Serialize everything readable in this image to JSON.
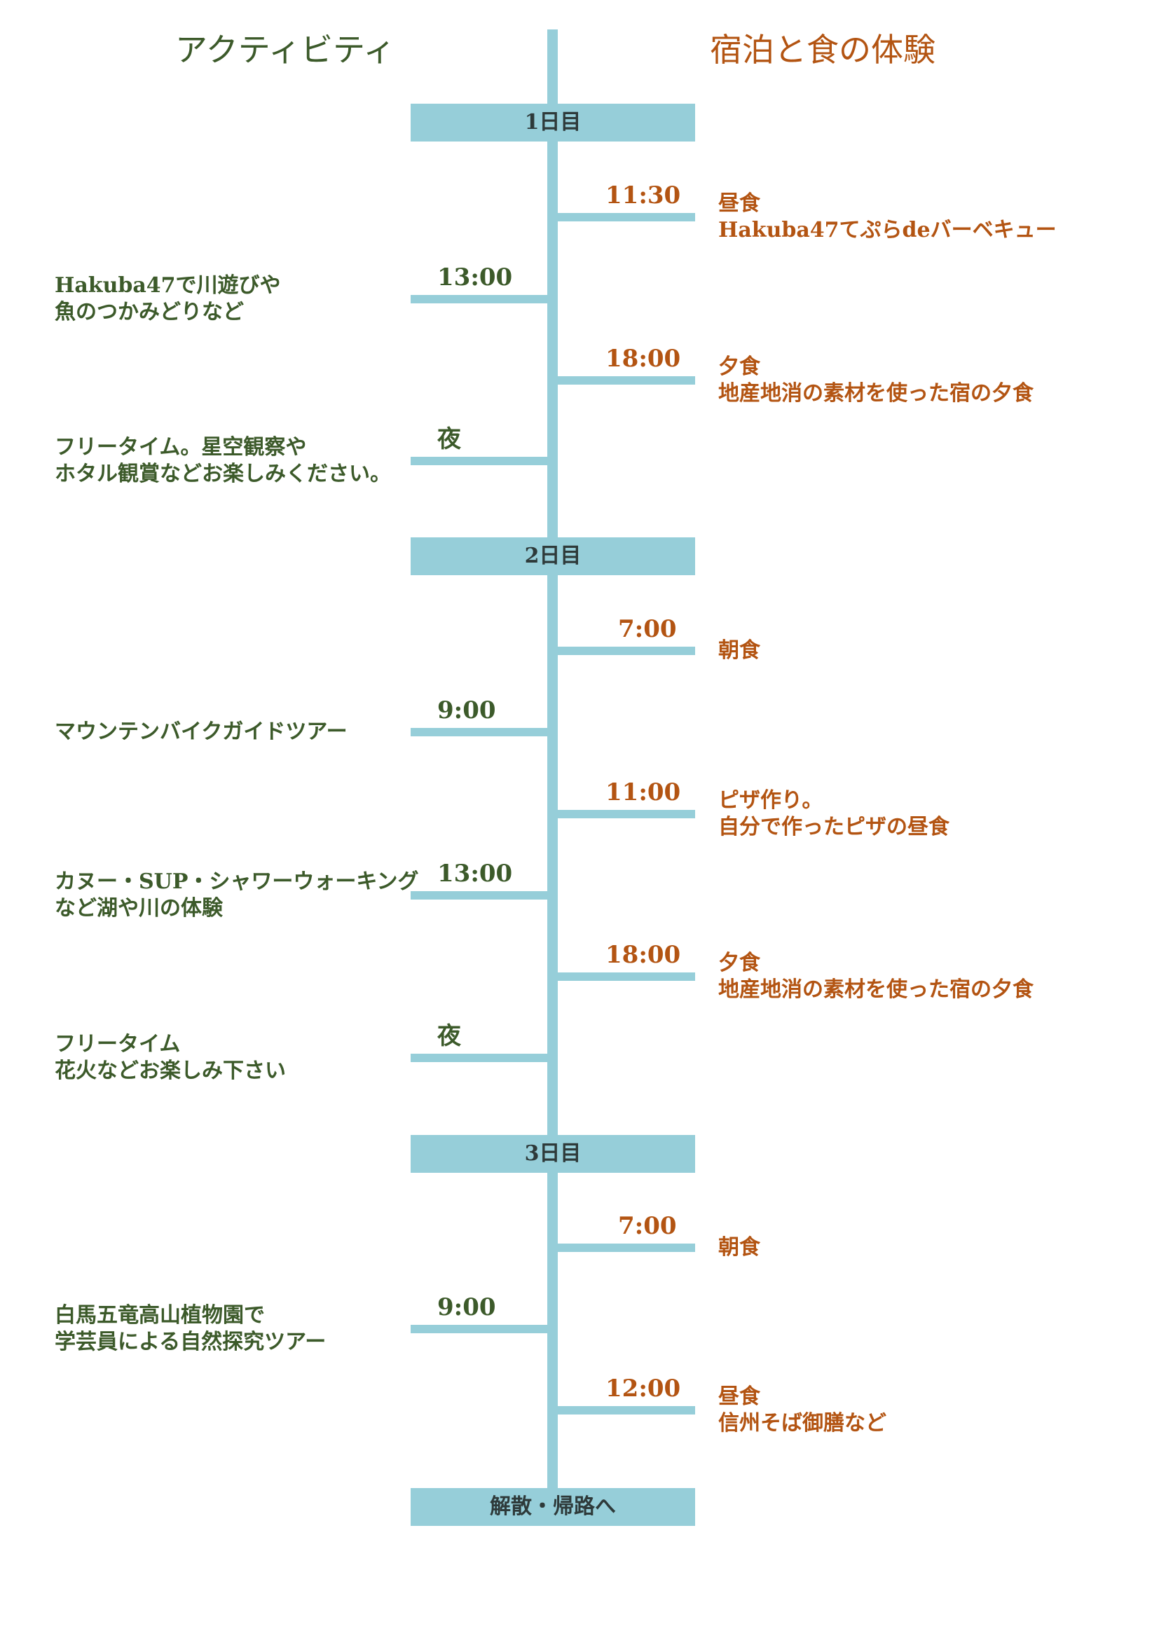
{
  "header": {
    "left_title": "アクティビティ",
    "right_title": "宿泊と食の体験"
  },
  "days": [
    {
      "label": "1日目"
    },
    {
      "label": "2日目"
    },
    {
      "label": "3日目"
    },
    {
      "label": "解散・帰路へ"
    }
  ],
  "events": [
    {
      "time": "11:30",
      "lines": [
        "昼食",
        "Hakuba47てぷらdeバーベキュー"
      ]
    },
    {
      "time": "13:00",
      "lines": [
        "Hakuba47で川遊びや",
        "魚のつかみどりなど"
      ]
    },
    {
      "time": "18:00",
      "lines": [
        "夕食",
        "地産地消の素材を使った宿の夕食"
      ]
    },
    {
      "time": "夜",
      "lines": [
        "フリータイム。星空観察や",
        "ホタル観賞などお楽しみください。"
      ]
    },
    {
      "time": "7:00",
      "lines": [
        "朝食"
      ]
    },
    {
      "time": "9:00",
      "lines": [
        "マウンテンバイクガイドツアー"
      ]
    },
    {
      "time": "11:00",
      "lines": [
        "ピザ作り。",
        "自分で作ったピザの昼食"
      ]
    },
    {
      "time": "13:00",
      "lines": [
        "カヌー・SUP・シャワーウォーキング",
        "など湖や川の体験"
      ]
    },
    {
      "time": "18:00",
      "lines": [
        "夕食",
        "地産地消の素材を使った宿の夕食"
      ]
    },
    {
      "time": "夜",
      "lines": [
        "フリータイム",
        "花火などお楽しみ下さい"
      ]
    },
    {
      "time": "7:00",
      "lines": [
        "朝食"
      ]
    },
    {
      "time": "9:00",
      "lines": [
        "白馬五竜高山植物園で",
        "学芸員による自然探究ツアー"
      ]
    },
    {
      "time": "12:00",
      "lines": [
        "昼食",
        "信州そば御膳など"
      ]
    }
  ],
  "colors": {
    "timeline": "#96ced9",
    "activity_text": "#3c5a2a",
    "food_text": "#b35412"
  }
}
